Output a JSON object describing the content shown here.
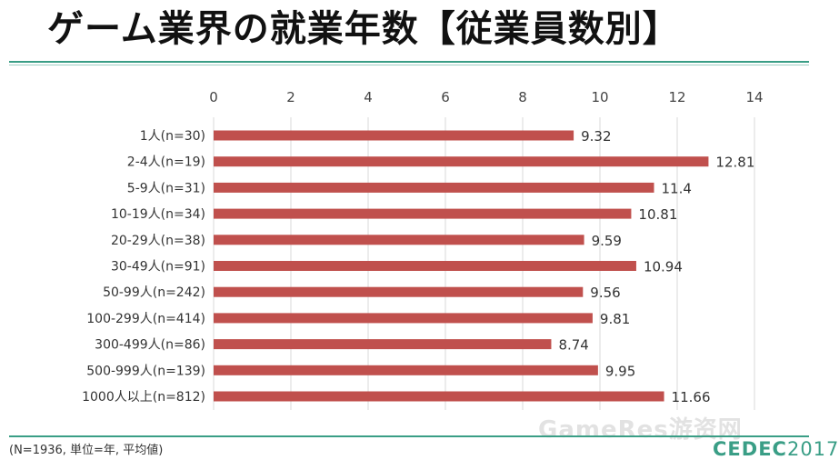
{
  "title": "ゲーム業界の就業年数【従業員数別】",
  "footnote": "(N=1936, 単位=年, 平均値)",
  "watermark": "GameRes游资网",
  "logo": {
    "brand": "CEDEC",
    "year": "2017"
  },
  "colors": {
    "bar": "#c0504d",
    "accent": "#3a9e86",
    "grid": "#d9d9d9"
  },
  "chart_data": {
    "type": "bar",
    "orientation": "horizontal",
    "title": "ゲーム業界の就業年数【従業員数別】",
    "xlabel": "",
    "ylabel": "",
    "xlim": [
      0,
      14
    ],
    "xticks": [
      0,
      2,
      4,
      6,
      8,
      10,
      12,
      14
    ],
    "categories": [
      "1人(n=30)",
      "2-4人(n=19)",
      "5-9人(n=31)",
      "10-19人(n=34)",
      "20-29人(n=38)",
      "30-49人(n=91)",
      "50-99人(n=242)",
      "100-299人(n=414)",
      "300-499人(n=86)",
      "500-999人(n=139)",
      "1000人以上(n=812)"
    ],
    "values": [
      9.32,
      12.81,
      11.4,
      10.81,
      9.59,
      10.94,
      9.56,
      9.81,
      8.74,
      9.95,
      11.66
    ],
    "value_labels": [
      "9.32",
      "12.81",
      "11.4",
      "10.81",
      "9.59",
      "10.94",
      "9.56",
      "9.81",
      "8.74",
      "9.95",
      "11.66"
    ],
    "grid": true,
    "legend": "none"
  }
}
